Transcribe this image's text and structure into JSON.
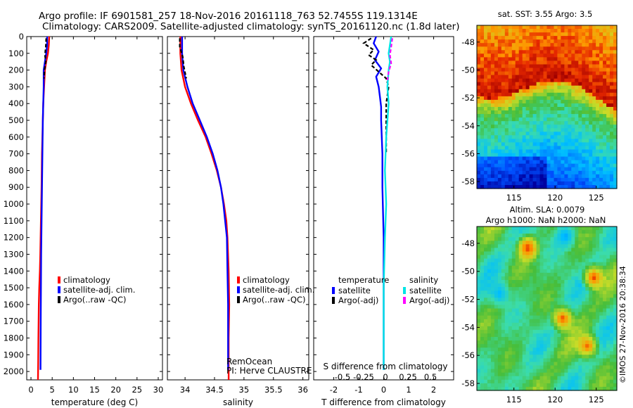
{
  "header": {
    "line1": "Argo profile: IF 6901581_257 18-Nov-2016 20161118_763 52.7455S 119.1314E",
    "line2": "Climatology: CARS2009. Satellite-adjusted climatology: synTS_20161120.nc (1.8d later)"
  },
  "sidebar_stamp": "©IMOS 27-Nov-2016 20:38:34",
  "remocean": {
    "line1": "RemOcean",
    "line2": "PI: Herve CLAUSTRE"
  },
  "chart_data": [
    {
      "type": "line",
      "id": "temperature",
      "xlabel": "temperature (deg C)",
      "ylabel": "",
      "xlim": [
        -1,
        31
      ],
      "ylim": [
        2050,
        0
      ],
      "xticks": [
        0,
        5,
        10,
        15,
        20,
        25,
        30
      ],
      "yticks": [
        0,
        100,
        200,
        300,
        400,
        500,
        600,
        700,
        800,
        900,
        1000,
        1100,
        1200,
        1300,
        1400,
        1500,
        1600,
        1700,
        1800,
        1900,
        2000
      ],
      "legend": [
        "climatology",
        "satellite-adj. clim.",
        "Argo(..raw -QC)"
      ],
      "legend_colors": [
        "#ff0000",
        "#0000ff",
        "#000000"
      ],
      "series": [
        {
          "name": "climatology",
          "color": "#ff0000",
          "style": "solid",
          "x": [
            4.3,
            4.2,
            4.0,
            3.6,
            3.3,
            3.1,
            2.9,
            2.8,
            2.6,
            2.5,
            2.35,
            2.2,
            2.1,
            1.95,
            1.85,
            1.75,
            1.7,
            1.65
          ],
          "y": [
            0,
            50,
            100,
            150,
            200,
            300,
            400,
            500,
            700,
            900,
            1100,
            1300,
            1400,
            1500,
            1600,
            1800,
            1950,
            2050
          ]
        },
        {
          "name": "satellite-adj. clim.",
          "color": "#0000ff",
          "style": "solid",
          "x": [
            3.8,
            3.8,
            3.6,
            3.3,
            3.0,
            3.0,
            2.9,
            2.8,
            2.7,
            2.6,
            2.5,
            2.4,
            2.35,
            2.3,
            2.25
          ],
          "y": [
            0,
            50,
            100,
            150,
            200,
            300,
            400,
            500,
            700,
            900,
            1100,
            1300,
            1500,
            1700,
            1990
          ]
        },
        {
          "name": "Argo(..raw -QC)",
          "color": "#000000",
          "style": "dashed",
          "x": [
            3.6,
            3.5,
            3.3,
            3.5,
            3.2,
            3.1
          ],
          "y": [
            10,
            60,
            110,
            150,
            200,
            250
          ]
        }
      ]
    },
    {
      "type": "line",
      "id": "salinity",
      "xlabel": "salinity",
      "ylabel": "",
      "xlim": [
        33.7,
        36.1
      ],
      "ylim": [
        2050,
        0
      ],
      "xticks": [
        34,
        34.5,
        35,
        35.5,
        36
      ],
      "legend": [
        "climatology",
        "satellite-adj. clim.",
        "Argo(..raw -QC)"
      ],
      "legend_colors": [
        "#ff0000",
        "#0000ff",
        "#000000"
      ],
      "series": [
        {
          "name": "climatology",
          "color": "#ff0000",
          "style": "solid",
          "x": [
            33.92,
            33.92,
            33.94,
            34.0,
            34.1,
            34.22,
            34.35,
            34.45,
            34.54,
            34.61,
            34.66,
            34.7,
            34.72,
            34.74,
            34.75,
            34.74,
            34.74
          ],
          "y": [
            0,
            100,
            200,
            300,
            400,
            500,
            600,
            700,
            800,
            900,
            1000,
            1100,
            1200,
            1400,
            1600,
            1800,
            2050
          ]
        },
        {
          "name": "satellite-adj. clim.",
          "color": "#0000ff",
          "style": "solid",
          "x": [
            33.95,
            33.95,
            33.97,
            34.04,
            34.13,
            34.25,
            34.37,
            34.47,
            34.55,
            34.61,
            34.65,
            34.68,
            34.71,
            34.72,
            34.73,
            34.73
          ],
          "y": [
            0,
            100,
            200,
            300,
            400,
            500,
            600,
            700,
            800,
            900,
            1000,
            1100,
            1200,
            1400,
            1600,
            1990
          ]
        },
        {
          "name": "Argo(..raw -QC)",
          "color": "#000000",
          "style": "dashed",
          "x": [
            33.91,
            33.91,
            33.96,
            33.98,
            34.02
          ],
          "y": [
            10,
            60,
            120,
            180,
            250
          ]
        }
      ]
    },
    {
      "type": "line",
      "id": "difference",
      "xlabel": "T difference from climatology",
      "xlabel_top": "S difference from climatology",
      "xlim": [
        -2.8,
        2.8
      ],
      "ylim": [
        2050,
        0
      ],
      "xticks": [
        -2,
        -1,
        0,
        1,
        2
      ],
      "xticks_s": [
        "-0.5",
        "-0.25",
        "0",
        "0.25",
        "0.5"
      ],
      "legend_left_title": "temperature",
      "legend_left": [
        "satellite",
        "Argo(-adj)"
      ],
      "legend_left_colors": [
        "#0000ff",
        "#000000"
      ],
      "legend_right_title": "salinity",
      "legend_right": [
        "satellite",
        "Argo(-adj)"
      ],
      "legend_right_colors": [
        "#00e5e5",
        "#ff00ff"
      ],
      "series": [
        {
          "name": "temperature satellite",
          "color": "#0000ff",
          "style": "solid",
          "x": [
            -0.3,
            -0.4,
            -0.2,
            -0.35,
            -0.1,
            -0.3,
            -0.2,
            -0.15,
            -0.1,
            -0.1,
            -0.05,
            -0.05,
            0.0,
            0.0,
            0.0,
            0.0
          ],
          "y": [
            0,
            40,
            90,
            140,
            190,
            240,
            300,
            360,
            420,
            500,
            700,
            900,
            1200,
            1500,
            1800,
            1990
          ]
        },
        {
          "name": "temperature Argo(-adj)",
          "color": "#000000",
          "style": "dashed",
          "x": [
            -0.5,
            -0.8,
            -0.4,
            -0.6,
            -0.3,
            -0.5,
            -0.2,
            0.1,
            0.2,
            0.1,
            0.1
          ],
          "y": [
            10,
            40,
            80,
            110,
            140,
            170,
            210,
            250,
            300,
            400,
            700
          ]
        },
        {
          "name": "salinity satellite",
          "color": "#00e5e5",
          "style": "solid",
          "x": [
            0.3,
            0.25,
            0.2,
            0.25,
            0.2,
            0.15,
            0.2,
            0.1,
            0.05,
            0.1,
            0.05,
            0.0,
            0.0,
            0.0
          ],
          "y": [
            0,
            50,
            100,
            150,
            200,
            300,
            400,
            600,
            800,
            1000,
            1200,
            1500,
            1800,
            1990
          ]
        },
        {
          "name": "salinity Argo(-adj)",
          "color": "#ff00ff",
          "style": "dashed",
          "x": [
            0.35,
            0.3,
            0.25,
            0.3,
            0.2,
            0.15
          ],
          "y": [
            10,
            60,
            110,
            160,
            210,
            260
          ]
        }
      ]
    },
    {
      "type": "heatmap",
      "id": "sst",
      "title": "sat. SST: 3.55 Argo: 3.5",
      "xticks": [
        115,
        120,
        125
      ],
      "yticks": [
        -48,
        -50,
        -52,
        -54,
        -56,
        -58
      ],
      "xlim": [
        110.5,
        127.5
      ],
      "ylim": [
        -58.5,
        -46.8
      ]
    },
    {
      "type": "heatmap",
      "id": "sla",
      "title": "Altim. SLA: 0.0079",
      "subtitle": "Argo h1000: NaN h2000: NaN",
      "xticks": [
        115,
        120,
        125
      ],
      "yticks": [
        -48,
        -50,
        -52,
        -54,
        -56,
        -58
      ],
      "xlim": [
        110.5,
        127.5
      ],
      "ylim": [
        -58.5,
        -46.8
      ]
    }
  ]
}
